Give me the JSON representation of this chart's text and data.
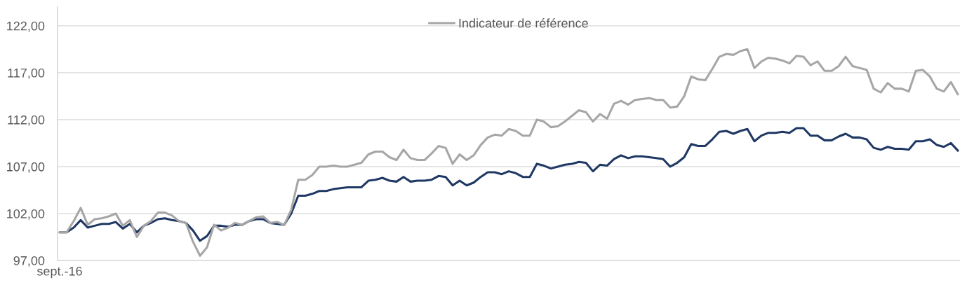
{
  "chart_data": {
    "type": "line",
    "categories": [
      "sept.-16",
      null,
      null,
      null,
      null,
      null,
      null,
      null,
      null,
      null,
      null,
      null,
      null,
      null,
      null,
      null,
      null,
      null,
      null,
      null,
      null,
      null,
      null,
      null,
      null,
      null,
      null,
      null,
      null,
      null,
      null,
      null,
      null,
      null,
      null,
      null,
      null,
      null,
      null,
      null,
      null,
      null,
      null,
      null,
      null,
      null,
      null,
      null,
      null,
      null,
      null,
      null,
      null,
      null,
      null,
      null,
      null,
      null,
      null,
      null,
      null,
      null,
      null,
      null,
      null,
      null,
      null,
      null,
      null,
      null,
      null,
      null,
      null,
      null,
      null,
      null,
      null,
      null,
      null,
      null,
      null,
      null,
      null,
      null,
      null,
      null,
      null,
      null,
      null,
      null,
      null,
      null,
      null,
      null,
      null,
      null,
      null,
      null,
      null,
      null,
      null,
      null,
      null,
      null,
      null,
      null,
      null,
      null,
      null,
      null,
      null,
      null,
      null,
      null,
      null,
      null,
      null,
      null,
      null,
      null,
      null,
      null,
      null,
      null,
      null,
      null,
      null,
      null,
      null
    ],
    "series": [
      {
        "color": "#1f3864",
        "values": [
          100.0,
          100.0,
          100.5,
          101.3,
          100.5,
          100.7,
          100.9,
          100.9,
          101.1,
          100.4,
          100.9,
          100.0,
          100.7,
          101.0,
          101.4,
          101.5,
          101.3,
          101.2,
          101.0,
          100.2,
          99.1,
          99.6,
          100.7,
          100.7,
          100.6,
          100.8,
          100.8,
          101.2,
          101.4,
          101.4,
          101.0,
          100.9,
          100.8,
          102.0,
          103.9,
          103.9,
          104.1,
          104.4,
          104.4,
          104.6,
          104.7,
          104.8,
          104.8,
          104.8,
          105.5,
          105.6,
          105.8,
          105.5,
          105.4,
          105.9,
          105.4,
          105.5,
          105.5,
          105.6,
          106.0,
          105.9,
          105.0,
          105.5,
          105.0,
          105.3,
          105.9,
          106.4,
          106.4,
          106.2,
          106.5,
          106.3,
          105.9,
          105.9,
          107.3,
          107.1,
          106.8,
          107.0,
          107.2,
          107.3,
          107.5,
          107.4,
          106.5,
          107.2,
          107.1,
          107.8,
          108.2,
          107.9,
          108.1,
          108.1,
          108.0,
          107.9,
          107.8,
          107.0,
          107.4,
          108.0,
          109.4,
          109.2,
          109.2,
          109.9,
          110.7,
          110.8,
          110.5,
          110.8,
          111.0,
          109.7,
          110.3,
          110.6,
          110.6,
          110.7,
          110.6,
          111.1,
          111.1,
          110.3,
          110.3,
          109.8,
          109.8,
          110.2,
          110.5,
          110.1,
          110.1,
          109.9,
          109.0,
          108.8,
          109.1,
          108.9,
          108.9,
          108.8,
          109.7,
          109.7,
          109.9,
          109.3,
          109.1,
          109.5,
          108.7
        ]
      },
      {
        "name": "Indicateur de référence",
        "color": "#a6a6a6",
        "values": [
          100.0,
          100.0,
          101.2,
          102.6,
          100.8,
          101.4,
          101.5,
          101.7,
          102.0,
          100.7,
          101.3,
          99.5,
          100.7,
          101.2,
          102.1,
          102.1,
          101.8,
          101.2,
          101.0,
          99.0,
          97.5,
          98.4,
          100.8,
          100.2,
          100.5,
          101.0,
          100.8,
          101.2,
          101.6,
          101.7,
          101.0,
          101.1,
          100.8,
          102.4,
          105.6,
          105.6,
          106.1,
          107.0,
          107.0,
          107.1,
          107.0,
          107.0,
          107.2,
          107.4,
          108.3,
          108.6,
          108.6,
          108.0,
          107.7,
          108.8,
          107.9,
          107.7,
          107.7,
          108.4,
          109.2,
          109.0,
          107.3,
          108.3,
          107.7,
          108.2,
          109.3,
          110.1,
          110.4,
          110.3,
          111.0,
          110.8,
          110.3,
          110.3,
          112.0,
          111.8,
          111.2,
          111.3,
          111.8,
          112.4,
          113.0,
          112.8,
          111.8,
          112.6,
          112.1,
          113.7,
          114.0,
          113.6,
          114.1,
          114.2,
          114.3,
          114.1,
          114.1,
          113.3,
          113.4,
          114.5,
          116.6,
          116.3,
          116.2,
          117.4,
          118.7,
          119.0,
          118.9,
          119.3,
          119.5,
          117.5,
          118.2,
          118.6,
          118.5,
          118.3,
          118.0,
          118.8,
          118.7,
          117.8,
          118.2,
          117.2,
          117.2,
          117.7,
          118.7,
          117.7,
          117.5,
          117.3,
          115.3,
          114.9,
          115.9,
          115.3,
          115.3,
          115.0,
          117.2,
          117.3,
          116.6,
          115.3,
          115.0,
          116.0,
          114.7
        ]
      }
    ],
    "ylim": [
      97,
      124
    ],
    "yticks": [
      {
        "value": 97,
        "label": "97,00"
      },
      {
        "value": 102,
        "label": "102,00"
      },
      {
        "value": 107,
        "label": "107,00"
      },
      {
        "value": 112,
        "label": "112,00"
      },
      {
        "value": 117,
        "label": "117,00"
      },
      {
        "value": 122,
        "label": "122,00"
      }
    ],
    "grid": "y",
    "legend": "top",
    "line_style": "solid"
  }
}
